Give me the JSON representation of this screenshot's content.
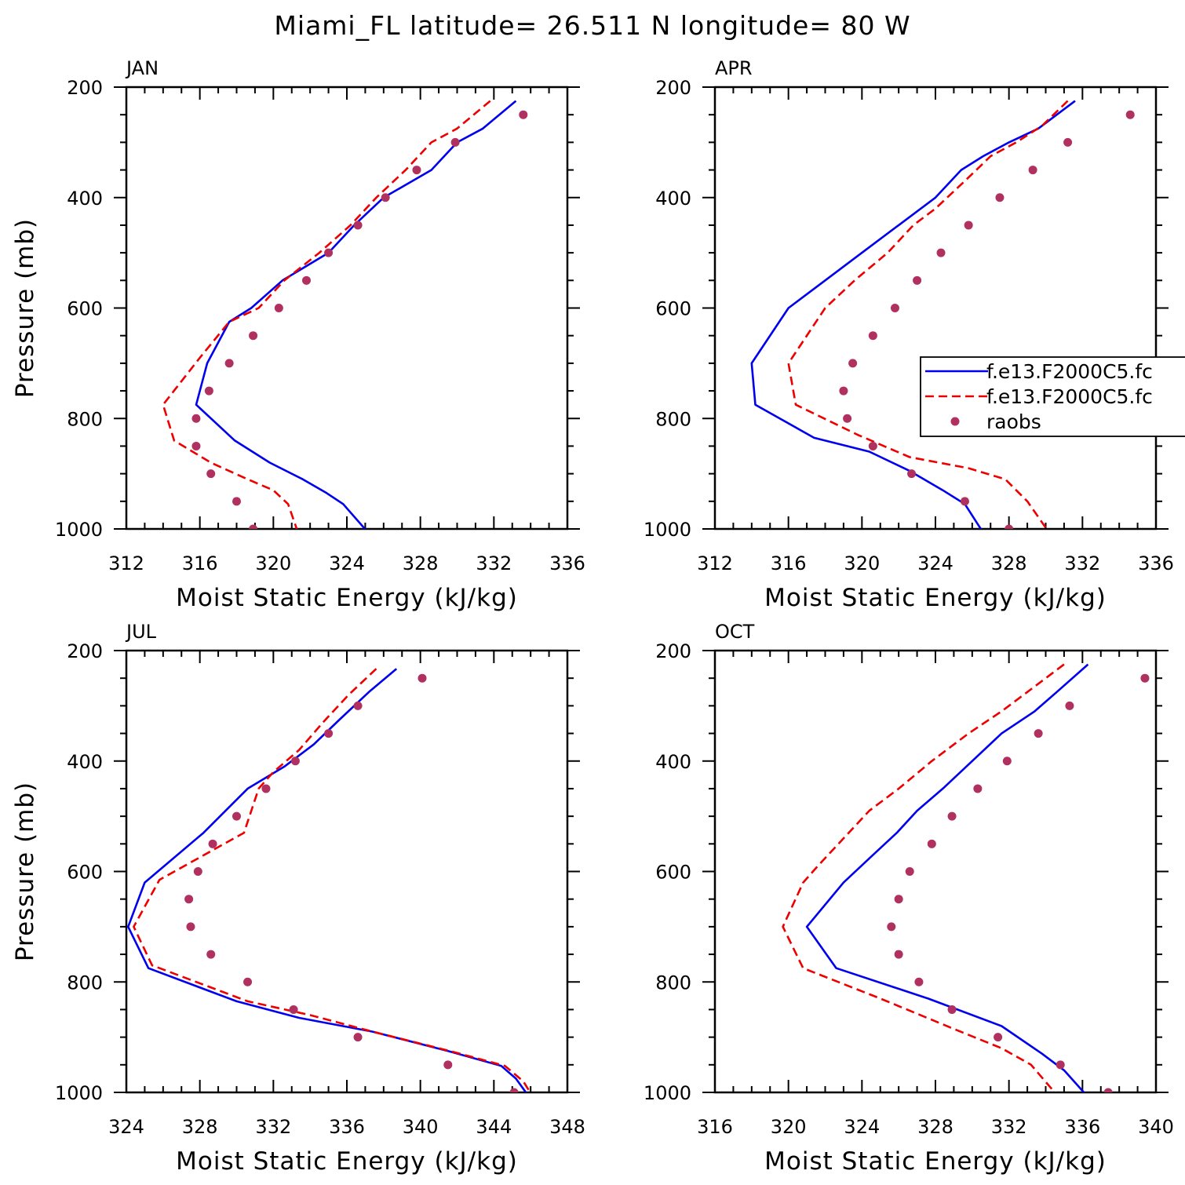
{
  "figure": {
    "title": "Miami_FL  latitude= 26.511 N longitude= 80 W"
  },
  "colors": {
    "model_a": "#0000ee",
    "model_b": "#ee0000",
    "raobs": "#b03060",
    "axes": "#000000"
  },
  "legend": {
    "panel": 1,
    "entries": [
      {
        "label": "f.e13.F2000C5.fc",
        "style": "solid",
        "color": "#0000ee"
      },
      {
        "label": "f.e13.F2000C5.fc",
        "style": "dashed",
        "color": "#ee0000"
      },
      {
        "label": "raobs",
        "style": "marker",
        "color": "#b03060"
      }
    ]
  },
  "chart_data": [
    {
      "type": "line",
      "title": "JAN",
      "xlabel": "Moist Static Energy (kJ/kg)",
      "ylabel": "Pressure (mb)",
      "xlim": [
        312,
        336
      ],
      "ylim": [
        200,
        1000
      ],
      "y_inverted": true,
      "xticks": [
        312,
        316,
        320,
        324,
        328,
        332,
        336
      ],
      "yticks": [
        200,
        400,
        600,
        800,
        1000
      ],
      "series": [
        {
          "style": "solid",
          "color": "#0000ee",
          "points": [
            [
              333.2,
              225
            ],
            [
              331.4,
              275
            ],
            [
              330.0,
              300
            ],
            [
              328.6,
              350
            ],
            [
              326.0,
              400
            ],
            [
              324.4,
              450
            ],
            [
              323.0,
              500
            ],
            [
              320.5,
              550
            ],
            [
              318.8,
              600
            ],
            [
              317.6,
              625
            ],
            [
              316.4,
              700
            ],
            [
              315.8,
              775
            ],
            [
              317.9,
              840
            ],
            [
              319.8,
              880
            ],
            [
              321.6,
              910
            ],
            [
              322.9,
              935
            ],
            [
              323.8,
              955
            ],
            [
              325.3,
              1012
            ]
          ]
        },
        {
          "style": "dashed",
          "color": "#ee0000",
          "points": [
            [
              331.8,
              225
            ],
            [
              330.0,
              275
            ],
            [
              328.6,
              300
            ],
            [
              327.2,
              350
            ],
            [
              325.6,
              400
            ],
            [
              324.2,
              450
            ],
            [
              322.5,
              500
            ],
            [
              320.6,
              550
            ],
            [
              319.2,
              600
            ],
            [
              317.6,
              625
            ],
            [
              316.0,
              690
            ],
            [
              314.0,
              775
            ],
            [
              314.6,
              840
            ],
            [
              316.6,
              880
            ],
            [
              318.6,
              910
            ],
            [
              320.0,
              930
            ],
            [
              320.8,
              955
            ],
            [
              321.4,
              1012
            ]
          ]
        },
        {
          "style": "marker",
          "color": "#b03060",
          "points": [
            [
              333.6,
              250
            ],
            [
              329.9,
              300
            ],
            [
              327.8,
              350
            ],
            [
              326.1,
              400
            ],
            [
              324.6,
              450
            ],
            [
              323.0,
              500
            ],
            [
              321.8,
              550
            ],
            [
              320.3,
              600
            ],
            [
              318.9,
              650
            ],
            [
              317.6,
              700
            ],
            [
              316.5,
              750
            ],
            [
              315.8,
              800
            ],
            [
              315.8,
              850
            ],
            [
              316.6,
              900
            ],
            [
              318.0,
              950
            ],
            [
              318.9,
              1000
            ]
          ]
        }
      ]
    },
    {
      "type": "line",
      "title": "APR",
      "xlabel": "Moist Static Energy (kJ/kg)",
      "ylabel": "",
      "xlim": [
        312,
        336
      ],
      "ylim": [
        200,
        1000
      ],
      "y_inverted": true,
      "xticks": [
        312,
        316,
        320,
        324,
        328,
        332,
        336
      ],
      "yticks": [
        200,
        400,
        600,
        800,
        1000
      ],
      "series": [
        {
          "style": "solid",
          "color": "#0000ee",
          "points": [
            [
              331.6,
              225
            ],
            [
              329.6,
              275
            ],
            [
              328.0,
              300
            ],
            [
              326.6,
              325
            ],
            [
              325.4,
              350
            ],
            [
              324.0,
              400
            ],
            [
              322.0,
              450
            ],
            [
              320.0,
              500
            ],
            [
              318.0,
              550
            ],
            [
              316.0,
              600
            ],
            [
              314.0,
              700
            ],
            [
              314.2,
              775
            ],
            [
              317.4,
              835
            ],
            [
              320.4,
              860
            ],
            [
              322.6,
              895
            ],
            [
              324.4,
              930
            ],
            [
              325.6,
              955
            ],
            [
              326.7,
              1012
            ]
          ]
        },
        {
          "style": "dashed",
          "color": "#ee0000",
          "points": [
            [
              331.2,
              225
            ],
            [
              329.8,
              270
            ],
            [
              328.4,
              300
            ],
            [
              327.0,
              325
            ],
            [
              325.6,
              370
            ],
            [
              324.0,
              420
            ],
            [
              322.8,
              450
            ],
            [
              321.4,
              500
            ],
            [
              319.6,
              550
            ],
            [
              318.0,
              600
            ],
            [
              316.0,
              700
            ],
            [
              316.4,
              775
            ],
            [
              319.8,
              830
            ],
            [
              322.6,
              870
            ],
            [
              325.8,
              890
            ],
            [
              327.8,
              910
            ],
            [
              329.0,
              950
            ],
            [
              330.3,
              1012
            ]
          ]
        },
        {
          "style": "marker",
          "color": "#b03060",
          "points": [
            [
              334.6,
              250
            ],
            [
              331.2,
              300
            ],
            [
              329.3,
              350
            ],
            [
              327.5,
              400
            ],
            [
              325.8,
              450
            ],
            [
              324.3,
              500
            ],
            [
              323.0,
              550
            ],
            [
              321.8,
              600
            ],
            [
              320.6,
              650
            ],
            [
              319.5,
              700
            ],
            [
              319.0,
              750
            ],
            [
              319.2,
              800
            ],
            [
              320.6,
              850
            ],
            [
              322.7,
              900
            ],
            [
              325.6,
              950
            ],
            [
              328.0,
              1000
            ]
          ]
        }
      ]
    },
    {
      "type": "line",
      "title": "JUL",
      "xlabel": "Moist Static Energy (kJ/kg)",
      "ylabel": "Pressure (mb)",
      "xlim": [
        324,
        348
      ],
      "ylim": [
        200,
        1000
      ],
      "y_inverted": true,
      "xticks": [
        324,
        328,
        332,
        336,
        340,
        344,
        348
      ],
      "yticks": [
        200,
        400,
        600,
        800,
        1000
      ],
      "series": [
        {
          "style": "solid",
          "color": "#0000ee",
          "points": [
            [
              338.7,
              233
            ],
            [
              337.2,
              275
            ],
            [
              335.6,
              325
            ],
            [
              334.2,
              370
            ],
            [
              332.6,
              410
            ],
            [
              330.6,
              450
            ],
            [
              328.2,
              530
            ],
            [
              325.0,
              620
            ],
            [
              324.1,
              700
            ],
            [
              325.2,
              775
            ],
            [
              330.0,
              835
            ],
            [
              333.4,
              865
            ],
            [
              337.4,
              890
            ],
            [
              341.5,
              925
            ],
            [
              344.4,
              952
            ],
            [
              345.2,
              975
            ],
            [
              346.0,
              1012
            ]
          ]
        },
        {
          "style": "dashed",
          "color": "#ee0000",
          "points": [
            [
              337.6,
              233
            ],
            [
              336.1,
              280
            ],
            [
              334.7,
              330
            ],
            [
              333.4,
              380
            ],
            [
              332.0,
              420
            ],
            [
              331.2,
              450
            ],
            [
              330.4,
              530
            ],
            [
              325.8,
              615
            ],
            [
              324.4,
              700
            ],
            [
              325.4,
              770
            ],
            [
              330.6,
              835
            ],
            [
              334.0,
              860
            ],
            [
              337.4,
              890
            ],
            [
              341.6,
              925
            ],
            [
              344.6,
              952
            ],
            [
              345.6,
              980
            ],
            [
              346.2,
              1012
            ]
          ]
        },
        {
          "style": "marker",
          "color": "#b03060",
          "points": [
            [
              340.1,
              250
            ],
            [
              336.6,
              300
            ],
            [
              335.0,
              350
            ],
            [
              333.2,
              400
            ],
            [
              331.6,
              450
            ],
            [
              330.0,
              500
            ],
            [
              328.7,
              550
            ],
            [
              327.9,
              600
            ],
            [
              327.4,
              650
            ],
            [
              327.5,
              700
            ],
            [
              328.6,
              750
            ],
            [
              330.6,
              800
            ],
            [
              333.1,
              850
            ],
            [
              336.6,
              900
            ],
            [
              341.5,
              950
            ],
            [
              345.1,
              1000
            ]
          ]
        }
      ]
    },
    {
      "type": "line",
      "title": "OCT",
      "xlabel": "Moist Static Energy (kJ/kg)",
      "ylabel": "",
      "xlim": [
        316,
        340
      ],
      "ylim": [
        200,
        1000
      ],
      "y_inverted": true,
      "xticks": [
        316,
        320,
        324,
        328,
        332,
        336,
        340
      ],
      "yticks": [
        200,
        400,
        600,
        800,
        1000
      ],
      "series": [
        {
          "style": "solid",
          "color": "#0000ee",
          "points": [
            [
              336.3,
              225
            ],
            [
              334.6,
              275
            ],
            [
              333.4,
              310
            ],
            [
              331.6,
              350
            ],
            [
              330.0,
              400
            ],
            [
              328.4,
              450
            ],
            [
              327.0,
              490
            ],
            [
              325.9,
              530
            ],
            [
              324.6,
              570
            ],
            [
              323.0,
              620
            ],
            [
              321.0,
              700
            ],
            [
              322.6,
              775
            ],
            [
              327.6,
              830
            ],
            [
              331.6,
              880
            ],
            [
              333.8,
              930
            ],
            [
              335.0,
              960
            ],
            [
              336.4,
              1012
            ]
          ]
        },
        {
          "style": "dashed",
          "color": "#ee0000",
          "points": [
            [
              335.0,
              225
            ],
            [
              333.0,
              275
            ],
            [
              331.6,
              310
            ],
            [
              329.8,
              350
            ],
            [
              327.8,
              400
            ],
            [
              326.0,
              450
            ],
            [
              324.4,
              490
            ],
            [
              323.0,
              540
            ],
            [
              321.6,
              590
            ],
            [
              320.8,
              620
            ],
            [
              319.7,
              700
            ],
            [
              320.8,
              775
            ],
            [
              325.0,
              830
            ],
            [
              329.0,
              885
            ],
            [
              331.6,
              920
            ],
            [
              333.2,
              950
            ],
            [
              334.8,
              1012
            ]
          ]
        },
        {
          "style": "marker",
          "color": "#b03060",
          "points": [
            [
              339.4,
              250
            ],
            [
              335.3,
              300
            ],
            [
              333.6,
              350
            ],
            [
              331.9,
              400
            ],
            [
              330.3,
              450
            ],
            [
              328.9,
              500
            ],
            [
              327.8,
              550
            ],
            [
              326.6,
              600
            ],
            [
              326.0,
              650
            ],
            [
              325.6,
              700
            ],
            [
              326.0,
              750
            ],
            [
              327.1,
              800
            ],
            [
              328.9,
              850
            ],
            [
              331.4,
              900
            ],
            [
              334.8,
              950
            ],
            [
              337.4,
              1000
            ]
          ]
        }
      ]
    }
  ]
}
